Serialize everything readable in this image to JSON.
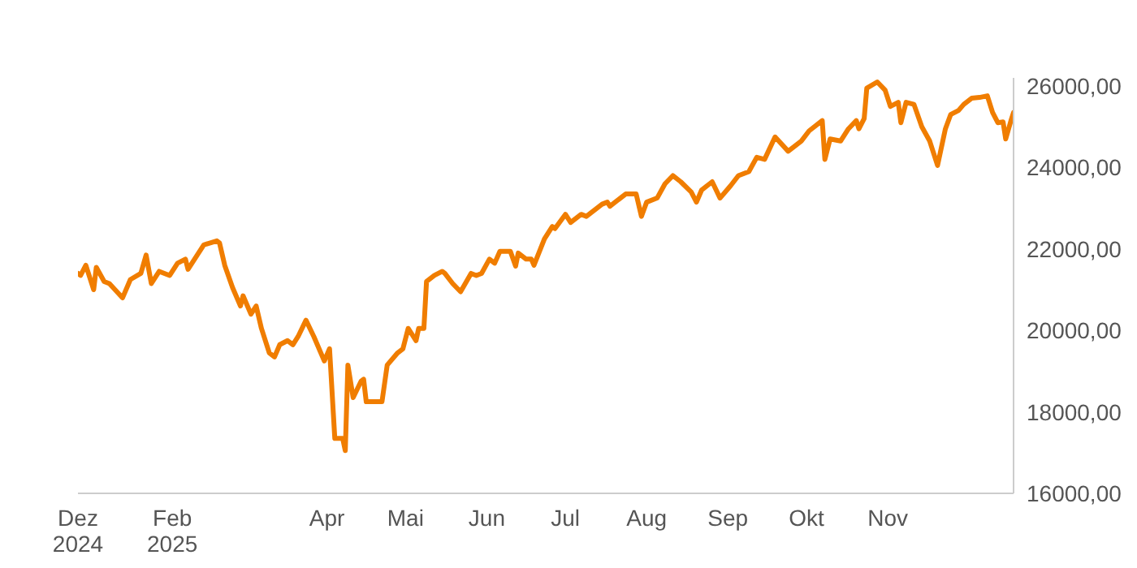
{
  "chart_data": {
    "type": "line",
    "color": "#f07d00",
    "xlim": [
      "2024-12-27",
      "2025-12-19"
    ],
    "xticks": [
      {
        "value": "2024-12-27",
        "label": "Dez 2024"
      },
      {
        "value": "2025-02-01",
        "label": "Feb 2025"
      },
      {
        "value": "2025-04-01",
        "label": "Apr"
      },
      {
        "value": "2025-05-01",
        "label": "Mai"
      },
      {
        "value": "2025-06-01",
        "label": "Jun"
      },
      {
        "value": "2025-07-01",
        "label": "Jul"
      },
      {
        "value": "2025-08-01",
        "label": "Aug"
      },
      {
        "value": "2025-09-01",
        "label": "Sep"
      },
      {
        "value": "2025-10-01",
        "label": "Okt"
      },
      {
        "value": "2025-11-01",
        "label": "Nov"
      }
    ],
    "ylim": [
      16000,
      26200
    ],
    "yticks": [
      {
        "value": 16000,
        "label": "16000,00"
      },
      {
        "value": 18000,
        "label": "18000,00"
      },
      {
        "value": 20000,
        "label": "20000,00"
      },
      {
        "value": 22000,
        "label": "22000,00"
      },
      {
        "value": 24000,
        "label": "24000,00"
      },
      {
        "value": 26000,
        "label": "26000,00"
      }
    ],
    "x": [
      "2024-12-27",
      "2024-12-28",
      "2024-12-30",
      "2025-01-02",
      "2025-01-03",
      "2025-01-06",
      "2025-01-08",
      "2025-01-13",
      "2025-01-16",
      "2025-01-20",
      "2025-01-22",
      "2025-01-24",
      "2025-01-27",
      "2025-01-31",
      "2025-02-03",
      "2025-02-06",
      "2025-02-07",
      "2025-02-10",
      "2025-02-13",
      "2025-02-18",
      "2025-02-19",
      "2025-02-21",
      "2025-02-24",
      "2025-02-27",
      "2025-02-28",
      "2025-03-03",
      "2025-03-05",
      "2025-03-07",
      "2025-03-10",
      "2025-03-12",
      "2025-03-14",
      "2025-03-17",
      "2025-03-19",
      "2025-03-21",
      "2025-03-24",
      "2025-03-27",
      "2025-03-31",
      "2025-04-02",
      "2025-04-04",
      "2025-04-07",
      "2025-04-08",
      "2025-04-09",
      "2025-04-11",
      "2025-04-14",
      "2025-04-15",
      "2025-04-16",
      "2025-04-22",
      "2025-04-24",
      "2025-04-28",
      "2025-04-30",
      "2025-05-02",
      "2025-05-05",
      "2025-05-06",
      "2025-05-08",
      "2025-05-09",
      "2025-05-12",
      "2025-05-15",
      "2025-05-16",
      "2025-05-19",
      "2025-05-22",
      "2025-05-26",
      "2025-05-28",
      "2025-05-30",
      "2025-06-02",
      "2025-06-04",
      "2025-06-06",
      "2025-06-10",
      "2025-06-12",
      "2025-06-13",
      "2025-06-16",
      "2025-06-18",
      "2025-06-19",
      "2025-06-23",
      "2025-06-26",
      "2025-06-27",
      "2025-07-01",
      "2025-07-03",
      "2025-07-07",
      "2025-07-09",
      "2025-07-11",
      "2025-07-15",
      "2025-07-17",
      "2025-07-18",
      "2025-07-24",
      "2025-07-28",
      "2025-07-30",
      "2025-08-01",
      "2025-08-05",
      "2025-08-08",
      "2025-08-11",
      "2025-08-14",
      "2025-08-18",
      "2025-08-20",
      "2025-08-22",
      "2025-08-26",
      "2025-08-29",
      "2025-09-02",
      "2025-09-05",
      "2025-09-09",
      "2025-09-12",
      "2025-09-15",
      "2025-09-19",
      "2025-09-24",
      "2025-09-29",
      "2025-10-02",
      "2025-10-06",
      "2025-10-07",
      "2025-10-08",
      "2025-10-10",
      "2025-10-14",
      "2025-10-17",
      "2025-10-20",
      "2025-10-21",
      "2025-10-23",
      "2025-10-24",
      "2025-10-28",
      "2025-10-31",
      "2025-11-02",
      "2025-11-05",
      "2025-11-06",
      "2025-11-08",
      "2025-11-11",
      "2025-11-14",
      "2025-11-17",
      "2025-11-18",
      "2025-11-20",
      "2025-11-23",
      "2025-11-25",
      "2025-11-28",
      "2025-11-30",
      "2025-12-03",
      "2025-12-06",
      "2025-12-09",
      "2025-12-11",
      "2025-12-13",
      "2025-12-15",
      "2025-12-16",
      "2025-12-18",
      "2025-12-19"
    ],
    "values": [
      21400,
      21350,
      21600,
      21000,
      21550,
      21200,
      21150,
      20800,
      21250,
      21400,
      21850,
      21150,
      21450,
      21350,
      21650,
      21750,
      21500,
      21800,
      22100,
      22200,
      22150,
      21600,
      21050,
      20600,
      20850,
      20400,
      20600,
      20050,
      19450,
      19350,
      19650,
      19750,
      19650,
      19850,
      20250,
      19850,
      19250,
      19550,
      17350,
      17350,
      17050,
      19150,
      18350,
      18750,
      18800,
      18250,
      18250,
      19150,
      19450,
      19550,
      20050,
      19750,
      20050,
      20050,
      21200,
      21350,
      21450,
      21400,
      21150,
      20950,
      21400,
      21350,
      21400,
      21750,
      21650,
      21940,
      21940,
      21580,
      21900,
      21750,
      21750,
      21600,
      22250,
      22550,
      22500,
      22850,
      22650,
      22850,
      22800,
      22900,
      23100,
      23150,
      23050,
      23350,
      23350,
      22800,
      23150,
      23250,
      23600,
      23800,
      23650,
      23400,
      23150,
      23450,
      23650,
      23250,
      23550,
      23800,
      23900,
      24250,
      24200,
      24750,
      24400,
      24650,
      24900,
      25100,
      25150,
      24200,
      24700,
      24650,
      24950,
      25150,
      24950,
      25200,
      25950,
      26100,
      25900,
      25500,
      25600,
      25100,
      25600,
      25550,
      25000,
      24650,
      24450,
      24050,
      24950,
      25300,
      25400,
      25550,
      25700,
      25720,
      25760,
      25350,
      25100,
      25120,
      24700,
      25150,
      25350
    ]
  }
}
